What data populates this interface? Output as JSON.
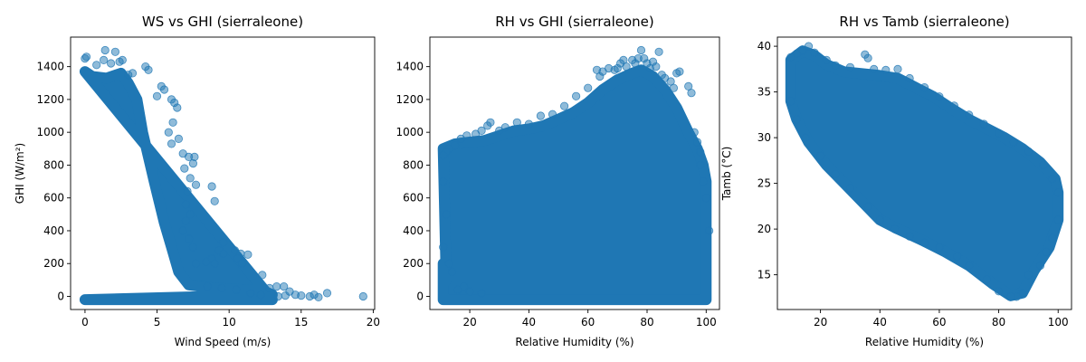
{
  "chart_data": [
    {
      "type": "scatter",
      "title": "WS vs GHI (sierraleone)",
      "xlabel": "Wind Speed (m/s)",
      "ylabel": "GHI (W/m²)",
      "xlim": [
        -1.0,
        20.1
      ],
      "ylim": [
        -80,
        1580
      ],
      "xticks": [
        0,
        5,
        10,
        15,
        20
      ],
      "yticks": [
        0,
        200,
        400,
        600,
        800,
        1000,
        1200,
        1400
      ],
      "color": "#1f77b4",
      "alpha": 0.5,
      "points": [
        [
          0.0,
          1450
        ],
        [
          0.1,
          1460
        ],
        [
          0.8,
          1410
        ],
        [
          1.3,
          1440
        ],
        [
          1.4,
          1500
        ],
        [
          2.1,
          1490
        ],
        [
          1.8,
          1420
        ],
        [
          2.4,
          1430
        ],
        [
          2.6,
          1440
        ],
        [
          3.0,
          1350
        ],
        [
          3.3,
          1360
        ],
        [
          4.2,
          1400
        ],
        [
          4.4,
          1380
        ],
        [
          5.3,
          1280
        ],
        [
          5.5,
          1260
        ],
        [
          5.0,
          1220
        ],
        [
          6.0,
          1200
        ],
        [
          6.2,
          1180
        ],
        [
          6.4,
          1150
        ],
        [
          6.1,
          1060
        ],
        [
          5.8,
          1000
        ],
        [
          6.5,
          960
        ],
        [
          6.0,
          930
        ],
        [
          6.8,
          870
        ],
        [
          7.2,
          850
        ],
        [
          7.6,
          850
        ],
        [
          7.5,
          810
        ],
        [
          6.9,
          780
        ],
        [
          7.3,
          720
        ],
        [
          7.7,
          680
        ],
        [
          7.1,
          640
        ],
        [
          8.8,
          670
        ],
        [
          9.0,
          580
        ],
        [
          7.0,
          560
        ],
        [
          7.3,
          500
        ],
        [
          7.0,
          460
        ],
        [
          6.8,
          400
        ],
        [
          7.2,
          350
        ],
        [
          7.5,
          300
        ],
        [
          9.6,
          330
        ],
        [
          9.3,
          280
        ],
        [
          9.6,
          260
        ],
        [
          10.4,
          280
        ],
        [
          10.8,
          260
        ],
        [
          11.3,
          255
        ],
        [
          10.6,
          230
        ],
        [
          10.9,
          200
        ],
        [
          8.8,
          230
        ],
        [
          8.4,
          210
        ],
        [
          9.0,
          200
        ],
        [
          7.7,
          200
        ],
        [
          12.3,
          130
        ],
        [
          12.8,
          50
        ],
        [
          13.3,
          60
        ],
        [
          13.8,
          60
        ],
        [
          14.2,
          30
        ],
        [
          13.4,
          0
        ],
        [
          13.9,
          5
        ],
        [
          14.6,
          10
        ],
        [
          15.0,
          5
        ],
        [
          15.6,
          0
        ],
        [
          15.9,
          10
        ],
        [
          16.2,
          -5
        ],
        [
          16.8,
          20
        ],
        [
          19.3,
          0
        ],
        [
          11.5,
          20
        ],
        [
          12.2,
          10
        ],
        [
          10.5,
          40
        ],
        [
          9.5,
          50
        ],
        [
          8.5,
          60
        ]
      ],
      "dense_region": {
        "top": [
          [
            0.0,
            1370
          ],
          [
            0.5,
            1340
          ],
          [
            1.5,
            1330
          ],
          [
            2.5,
            1360
          ],
          [
            3.0,
            1300
          ],
          [
            3.6,
            1200
          ],
          [
            4.0,
            1000
          ],
          [
            4.8,
            700
          ],
          [
            5.5,
            450
          ],
          [
            6.0,
            300
          ],
          [
            6.5,
            150
          ],
          [
            7.2,
            70
          ],
          [
            9.0,
            50
          ],
          [
            11.0,
            40
          ],
          [
            12.5,
            30
          ],
          [
            13.0,
            10
          ]
        ],
        "bottom": [
          [
            0.0,
            -20
          ],
          [
            13.0,
            -20
          ]
        ]
      }
    },
    {
      "type": "scatter",
      "title": "RH vs GHI (sierraleone)",
      "xlabel": "Relative Humidity (%)",
      "ylabel": "",
      "xlim": [
        6.5,
        104.5
      ],
      "ylim": [
        -80,
        1580
      ],
      "xticks": [
        20,
        40,
        60,
        80,
        100
      ],
      "yticks": [
        0,
        200,
        400,
        600,
        800,
        1000,
        1200,
        1400
      ],
      "color": "#1f77b4",
      "alpha": 0.5,
      "points": [
        [
          63,
          1380
        ],
        [
          64,
          1340
        ],
        [
          65,
          1370
        ],
        [
          67,
          1390
        ],
        [
          69,
          1380
        ],
        [
          70,
          1390
        ],
        [
          71,
          1420
        ],
        [
          72,
          1440
        ],
        [
          73,
          1400
        ],
        [
          75,
          1440
        ],
        [
          76,
          1420
        ],
        [
          77,
          1450
        ],
        [
          78,
          1500
        ],
        [
          79,
          1450
        ],
        [
          80,
          1420
        ],
        [
          81,
          1390
        ],
        [
          82,
          1430
        ],
        [
          83,
          1400
        ],
        [
          84,
          1490
        ],
        [
          85,
          1350
        ],
        [
          86,
          1330
        ],
        [
          88,
          1310
        ],
        [
          89,
          1270
        ],
        [
          90,
          1360
        ],
        [
          91,
          1370
        ],
        [
          94,
          1280
        ],
        [
          95,
          1240
        ],
        [
          96,
          1000
        ],
        [
          97,
          940
        ],
        [
          98,
          880
        ],
        [
          60,
          1270
        ],
        [
          56,
          1220
        ],
        [
          52,
          1160
        ],
        [
          48,
          1110
        ],
        [
          44,
          1100
        ],
        [
          40,
          1050
        ],
        [
          36,
          1060
        ],
        [
          32,
          1030
        ],
        [
          30,
          1010
        ],
        [
          27,
          1060
        ],
        [
          26,
          1040
        ],
        [
          24,
          1010
        ],
        [
          22,
          990
        ],
        [
          19,
          980
        ],
        [
          17,
          960
        ],
        [
          15,
          920
        ],
        [
          13,
          900
        ],
        [
          12,
          880
        ],
        [
          11,
          860
        ],
        [
          16,
          40
        ],
        [
          20,
          30
        ],
        [
          24,
          20
        ],
        [
          18,
          60
        ],
        [
          14,
          150
        ],
        [
          13,
          200
        ],
        [
          11,
          300
        ],
        [
          12,
          500
        ],
        [
          11,
          700
        ],
        [
          98,
          800
        ],
        [
          99,
          700
        ],
        [
          100,
          600
        ],
        [
          101,
          400
        ]
      ],
      "dense_region": {
        "top": [
          [
            11,
            900
          ],
          [
            15,
            930
          ],
          [
            20,
            940
          ],
          [
            25,
            950
          ],
          [
            30,
            980
          ],
          [
            35,
            1010
          ],
          [
            40,
            1020
          ],
          [
            45,
            1040
          ],
          [
            50,
            1080
          ],
          [
            55,
            1120
          ],
          [
            60,
            1180
          ],
          [
            65,
            1260
          ],
          [
            70,
            1320
          ],
          [
            75,
            1360
          ],
          [
            78,
            1380
          ],
          [
            82,
            1340
          ],
          [
            86,
            1260
          ],
          [
            90,
            1150
          ],
          [
            94,
            1000
          ],
          [
            97,
            900
          ],
          [
            99,
            800
          ],
          [
            100,
            700
          ]
        ],
        "bottom": [
          [
            100,
            0
          ],
          [
            100,
            -20
          ],
          [
            11,
            -20
          ],
          [
            11,
            200
          ],
          [
            12,
            150
          ],
          [
            12,
            100
          ]
        ]
      }
    },
    {
      "type": "scatter",
      "title": "RH vs Tamb (sierraleone)",
      "xlabel": "Relative Humidity (%)",
      "ylabel": "Tamb (°C)",
      "xlim": [
        5.5,
        104.5
      ],
      "ylim": [
        11.2,
        41.0
      ],
      "xticks": [
        20,
        40,
        60,
        80,
        100
      ],
      "yticks": [
        15,
        20,
        25,
        30,
        35,
        40
      ],
      "color": "#1f77b4",
      "alpha": 0.5,
      "points": [
        [
          16,
          40
        ],
        [
          14,
          39.5
        ],
        [
          12,
          39.2
        ],
        [
          10,
          38.8
        ],
        [
          18,
          39.3
        ],
        [
          22,
          38.5
        ],
        [
          25,
          37.9
        ],
        [
          30,
          37.7
        ],
        [
          35,
          39.1
        ],
        [
          36,
          38.7
        ],
        [
          38,
          37.5
        ],
        [
          42,
          37.4
        ],
        [
          46,
          37.5
        ],
        [
          50,
          36.5
        ],
        [
          55,
          35.5
        ],
        [
          60,
          34.5
        ],
        [
          65,
          33.5
        ],
        [
          70,
          32.5
        ],
        [
          75,
          31.5
        ],
        [
          80,
          30.5
        ],
        [
          85,
          29.5
        ],
        [
          90,
          28.5
        ],
        [
          95,
          27.0
        ],
        [
          98,
          25.5
        ],
        [
          100,
          24.0
        ],
        [
          100,
          21.0
        ],
        [
          98,
          19.0
        ],
        [
          96,
          17.5
        ],
        [
          94,
          16.0
        ],
        [
          90,
          15.0
        ],
        [
          88,
          13.0
        ],
        [
          86,
          12.6
        ],
        [
          84,
          12.6
        ],
        [
          80,
          13.2
        ],
        [
          76,
          14.5
        ],
        [
          70,
          16.0
        ],
        [
          66,
          17.0
        ],
        [
          60,
          18.0
        ],
        [
          55,
          18.5
        ],
        [
          50,
          19.2
        ],
        [
          45,
          20.0
        ],
        [
          40,
          21.0
        ],
        [
          36,
          22.5
        ],
        [
          30,
          24.5
        ],
        [
          25,
          26.0
        ],
        [
          20,
          28.0
        ],
        [
          15,
          30.0
        ],
        [
          12,
          32.0
        ],
        [
          10,
          34.0
        ]
      ],
      "dense_region": {
        "top": [
          [
            10,
            38.5
          ],
          [
            14,
            39.5
          ],
          [
            18,
            39.0
          ],
          [
            22,
            38.0
          ],
          [
            28,
            37.2
          ],
          [
            34,
            37.0
          ],
          [
            40,
            36.8
          ],
          [
            46,
            36.5
          ],
          [
            52,
            35.5
          ],
          [
            58,
            34.5
          ],
          [
            64,
            33.2
          ],
          [
            70,
            32.0
          ],
          [
            76,
            31.0
          ],
          [
            82,
            30.0
          ],
          [
            88,
            28.8
          ],
          [
            94,
            27.3
          ],
          [
            99,
            25.5
          ],
          [
            100,
            24.0
          ]
        ],
        "bottom": [
          [
            100,
            21.0
          ],
          [
            97,
            18.0
          ],
          [
            92,
            15.5
          ],
          [
            88,
            13.0
          ],
          [
            84,
            12.7
          ],
          [
            78,
            14.0
          ],
          [
            70,
            16.0
          ],
          [
            62,
            17.5
          ],
          [
            54,
            18.8
          ],
          [
            46,
            20.0
          ],
          [
            40,
            21.0
          ],
          [
            34,
            23.0
          ],
          [
            28,
            25.0
          ],
          [
            22,
            27.0
          ],
          [
            16,
            29.5
          ],
          [
            12,
            32.0
          ],
          [
            10,
            34.0
          ]
        ]
      }
    }
  ]
}
